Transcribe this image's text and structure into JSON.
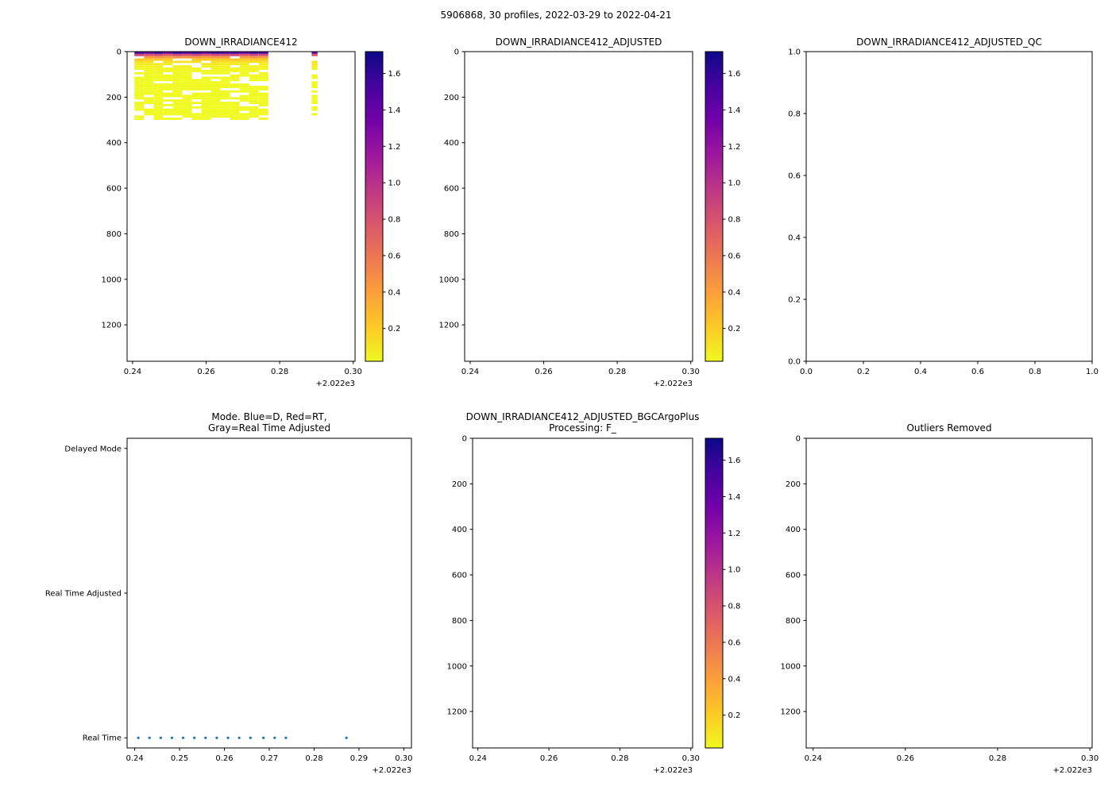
{
  "figure": {
    "suptitle": "5906868, 30 profiles, 2022-03-29 to 2022-04-21",
    "background": "#ffffff"
  },
  "colormap": {
    "name": "plasma-reversed",
    "stops": [
      {
        "t": 0.0,
        "color": "#f0f921"
      },
      {
        "t": 0.111,
        "color": "#fdca26"
      },
      {
        "t": 0.222,
        "color": "#fb9f3a"
      },
      {
        "t": 0.333,
        "color": "#ed7953"
      },
      {
        "t": 0.444,
        "color": "#d8576b"
      },
      {
        "t": 0.556,
        "color": "#bd3786"
      },
      {
        "t": 0.667,
        "color": "#9c179e"
      },
      {
        "t": 0.778,
        "color": "#7201a8"
      },
      {
        "t": 0.889,
        "color": "#46039f"
      },
      {
        "t": 1.0,
        "color": "#0d0887"
      }
    ]
  },
  "chart_data": [
    {
      "id": "irr",
      "type": "heatmap",
      "title": "DOWN_IRRADIANCE412",
      "xlabel_offset_note": "decimal year minus 2022",
      "xlim": [
        0.2385,
        0.3005
      ],
      "x_ticks": [
        0.24,
        0.26,
        0.28,
        0.3
      ],
      "x_tick_labels": [
        "0.24",
        "0.26",
        "0.28",
        "0.30"
      ],
      "x_offset": "+2.022e3",
      "ylim": [
        0,
        1360
      ],
      "y_inverted": true,
      "y_ticks": [
        0,
        200,
        400,
        600,
        800,
        1000,
        1200
      ],
      "y_tick_labels": [
        "0",
        "200",
        "400",
        "600",
        "800",
        "1000",
        "1200"
      ],
      "colorbar": {
        "vmin": 0.02,
        "vmax": 1.72,
        "ticks": [
          0.2,
          0.4,
          0.6,
          0.8,
          1.0,
          1.2,
          1.4,
          1.6
        ],
        "tick_labels": [
          "0.2",
          "0.4",
          "0.6",
          "0.8",
          "1.0",
          "1.2",
          "1.4",
          "1.6"
        ]
      },
      "heatmap": {
        "depth_bin_size": 10,
        "bin_values": [
          1.55,
          0.85,
          0.45,
          0.22,
          0.12,
          0.08,
          0.05,
          0.04,
          0.03,
          0.025,
          0.02,
          0.018,
          0.016,
          0.015,
          0.014,
          0.013,
          0.012,
          0.012,
          0.011,
          0.011,
          0.01,
          0.01,
          0.01,
          0.01,
          0.01,
          0.01,
          0.01,
          0.01,
          0.01,
          0.01
        ],
        "default_width": 0.0026,
        "profiles": [
          {
            "x": 0.2405,
            "bottom": 300,
            "scale": 1.0,
            "gap": 0.15
          },
          {
            "x": 0.2431,
            "bottom": 300,
            "scale": 0.93,
            "gap": 0.2
          },
          {
            "x": 0.2457,
            "bottom": 295,
            "scale": 1.0,
            "gap": 0.18
          },
          {
            "x": 0.2483,
            "bottom": 300,
            "scale": 0.88,
            "gap": 0.22
          },
          {
            "x": 0.2509,
            "bottom": 300,
            "scale": 1.0,
            "gap": 0.15
          },
          {
            "x": 0.2535,
            "bottom": 290,
            "scale": 0.95,
            "gap": 0.2
          },
          {
            "x": 0.2561,
            "bottom": 300,
            "scale": 1.0,
            "gap": 0.25
          },
          {
            "x": 0.2587,
            "bottom": 300,
            "scale": 0.9,
            "gap": 0.18
          },
          {
            "x": 0.2613,
            "bottom": 300,
            "scale": 1.0,
            "gap": 0.2
          },
          {
            "x": 0.2639,
            "bottom": 295,
            "scale": 0.96,
            "gap": 0.22
          },
          {
            "x": 0.2665,
            "bottom": 300,
            "scale": 1.0,
            "gap": 0.18
          },
          {
            "x": 0.2691,
            "bottom": 300,
            "scale": 0.92,
            "gap": 0.2
          },
          {
            "x": 0.2717,
            "bottom": 290,
            "scale": 1.0,
            "gap": 0.22
          },
          {
            "x": 0.2743,
            "bottom": 300,
            "scale": 0.97,
            "gap": 0.18
          },
          {
            "x": 0.2887,
            "w": 0.0016,
            "bottom": 300,
            "scale": 0.9,
            "gap": 0.45
          }
        ]
      }
    },
    {
      "id": "adj",
      "type": "heatmap",
      "title": "DOWN_IRRADIANCE412_ADJUSTED",
      "xlim": [
        0.2385,
        0.3005
      ],
      "x_ticks": [
        0.24,
        0.26,
        0.28,
        0.3
      ],
      "x_tick_labels": [
        "0.24",
        "0.26",
        "0.28",
        "0.30"
      ],
      "x_offset": "+2.022e3",
      "ylim": [
        0,
        1360
      ],
      "y_inverted": true,
      "y_ticks": [
        0,
        200,
        400,
        600,
        800,
        1000,
        1200
      ],
      "y_tick_labels": [
        "0",
        "200",
        "400",
        "600",
        "800",
        "1000",
        "1200"
      ],
      "colorbar": {
        "vmin": 0.02,
        "vmax": 1.72,
        "ticks": [
          0.2,
          0.4,
          0.6,
          0.8,
          1.0,
          1.2,
          1.4,
          1.6
        ],
        "tick_labels": [
          "0.2",
          "0.4",
          "0.6",
          "0.8",
          "1.0",
          "1.2",
          "1.4",
          "1.6"
        ]
      }
    },
    {
      "id": "qc",
      "type": "empty",
      "title": "DOWN_IRRADIANCE412_ADJUSTED_QC",
      "xlim": [
        0,
        1
      ],
      "x_ticks": [
        0.0,
        0.2,
        0.4,
        0.6,
        0.8,
        1.0
      ],
      "x_tick_labels": [
        "0.0",
        "0.2",
        "0.4",
        "0.6",
        "0.8",
        "1.0"
      ],
      "ylim": [
        0,
        1
      ],
      "y_inverted": false,
      "y_ticks": [
        0.0,
        0.2,
        0.4,
        0.6,
        0.8,
        1.0
      ],
      "y_tick_labels": [
        "0.0",
        "0.2",
        "0.4",
        "0.6",
        "0.8",
        "1.0"
      ]
    },
    {
      "id": "mode",
      "type": "scatter",
      "title_lines": [
        "Mode. Blue=D, Red=RT,",
        "Gray=Real Time Adjusted"
      ],
      "xlim": [
        0.2383,
        0.3017
      ],
      "x_ticks": [
        0.24,
        0.25,
        0.26,
        0.27,
        0.28,
        0.29,
        0.3
      ],
      "x_tick_labels": [
        "0.24",
        "0.25",
        "0.26",
        "0.27",
        "0.28",
        "0.29",
        "0.30"
      ],
      "x_offset": "+2.022e3",
      "ylim": [
        -0.07,
        2.07
      ],
      "y_inverted": false,
      "categories": [
        {
          "label": "Real Time",
          "value": 0
        },
        {
          "label": "Real Time Adjusted",
          "value": 1
        },
        {
          "label": "Delayed Mode",
          "value": 2
        }
      ],
      "scatter": {
        "color": "#1f77b4",
        "y_category": "Real Time",
        "x": [
          0.2408,
          0.2433,
          0.2458,
          0.2483,
          0.2508,
          0.2533,
          0.2558,
          0.2583,
          0.2608,
          0.2633,
          0.2658,
          0.2687,
          0.2712,
          0.2737,
          0.2872
        ]
      }
    },
    {
      "id": "bgc",
      "type": "heatmap",
      "title_lines": [
        "DOWN_IRRADIANCE412_ADJUSTED_BGCArgoPlus",
        "Processing: F_"
      ],
      "xlim": [
        0.2385,
        0.3005
      ],
      "x_ticks": [
        0.24,
        0.26,
        0.28,
        0.3
      ],
      "x_tick_labels": [
        "0.24",
        "0.26",
        "0.28",
        "0.30"
      ],
      "x_offset": "+2.022e3",
      "ylim": [
        0,
        1360
      ],
      "y_inverted": true,
      "y_ticks": [
        0,
        200,
        400,
        600,
        800,
        1000,
        1200
      ],
      "y_tick_labels": [
        "0",
        "200",
        "400",
        "600",
        "800",
        "1000",
        "1200"
      ],
      "colorbar": {
        "vmin": 0.02,
        "vmax": 1.72,
        "ticks": [
          0.2,
          0.4,
          0.6,
          0.8,
          1.0,
          1.2,
          1.4,
          1.6
        ],
        "tick_labels": [
          "0.2",
          "0.4",
          "0.6",
          "0.8",
          "1.0",
          "1.2",
          "1.4",
          "1.6"
        ]
      }
    },
    {
      "id": "out",
      "type": "empty",
      "title": "Outliers Removed",
      "xlim": [
        0.2385,
        0.3005
      ],
      "x_ticks": [
        0.24,
        0.26,
        0.28,
        0.3
      ],
      "x_tick_labels": [
        "0.24",
        "0.26",
        "0.28",
        "0.30"
      ],
      "x_offset": "+2.022e3",
      "ylim": [
        0,
        1360
      ],
      "y_inverted": true,
      "y_ticks": [
        0,
        200,
        400,
        600,
        800,
        1000,
        1200
      ],
      "y_tick_labels": [
        "0",
        "200",
        "400",
        "600",
        "800",
        "1000",
        "1200"
      ]
    }
  ]
}
